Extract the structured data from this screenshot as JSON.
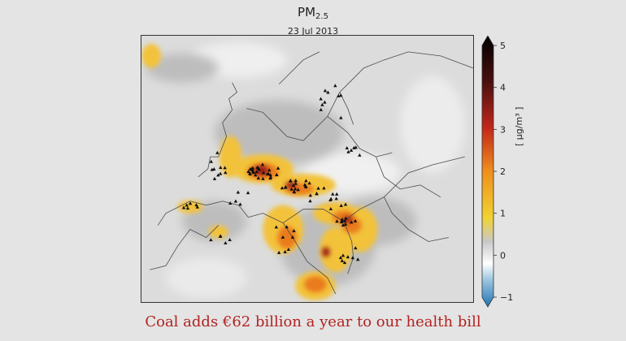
{
  "header": {
    "title_main": "PM",
    "title_sub": "2.5",
    "date": "23 Jul 2013"
  },
  "colorbar": {
    "unit": "[ µg/m³ ]",
    "ticks": [
      "5",
      "4",
      "3",
      "2",
      "1",
      "0",
      "−1"
    ],
    "range": [
      -1,
      5
    ],
    "colors": [
      "#1f74b4",
      "#ffffff",
      "#c8c8c8",
      "#f1d231",
      "#ef8f1d",
      "#c3261a",
      "#4a1010",
      "#000000"
    ]
  },
  "map": {
    "region": "Europe",
    "marker_icon": "triangle-icon",
    "land_color": "#d3d3d3",
    "border_color": "#4a4a4a"
  },
  "caption": "Coal adds €62 billion a year  to our health bill"
}
